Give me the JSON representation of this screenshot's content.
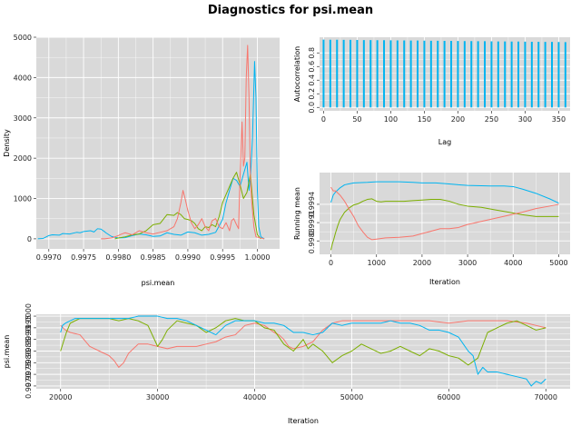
{
  "figure": {
    "title": "Diagnostics for psi.mean"
  },
  "colors": {
    "chain1": "#F8766D",
    "chain2": "#7CAE00",
    "chain3": "#00B4F0",
    "panel_bg": "#D9D9D9",
    "grid": "#FFFFFF"
  },
  "chart_data": [
    {
      "id": "density",
      "type": "line",
      "title": "",
      "xlabel": "psi.mean",
      "ylabel": "Density",
      "xlim": [
        0.99682,
        1.00032
      ],
      "ylim": [
        -250,
        5000
      ],
      "xticks": [
        0.997,
        0.9975,
        0.998,
        0.9985,
        0.999,
        0.9995,
        1.0
      ],
      "xtick_labels": [
        "0.9970",
        "0.9975",
        "0.9980",
        "0.9985",
        "0.9990",
        "0.9995",
        "1.0000"
      ],
      "yticks": [
        0,
        1000,
        2000,
        3000,
        4000,
        5000
      ],
      "ytick_labels": [
        "0",
        "1000",
        "2000",
        "3000",
        "4000",
        "5000"
      ],
      "grid": true,
      "series": [
        {
          "color": "#00B4F0",
          "x": [
            0.99684,
            0.99692,
            0.997,
            0.99705,
            0.99715,
            0.9972,
            0.9973,
            0.9974,
            0.99745,
            0.9975,
            0.9976,
            0.99765,
            0.9977,
            0.99775,
            0.9978,
            0.99782,
            0.9979,
            0.998,
            0.9981,
            0.9982,
            0.9983,
            0.9984,
            0.9985,
            0.9986,
            0.9987,
            0.9988,
            0.9989,
            0.999,
            0.9991,
            0.9992,
            0.9993,
            0.9994,
            0.9995,
            0.99955,
            0.9996,
            0.99965,
            0.9997,
            0.99975,
            0.9998,
            0.99985,
            0.99988,
            0.9999,
            0.99993,
            0.99996,
            0.99998,
            1.0,
            1.00002,
            1.00005,
            1.0001
          ],
          "y": [
            0,
            10,
            80,
            100,
            90,
            130,
            120,
            160,
            150,
            180,
            200,
            170,
            250,
            240,
            180,
            150,
            60,
            20,
            30,
            80,
            120,
            100,
            60,
            70,
            150,
            110,
            90,
            170,
            150,
            90,
            110,
            160,
            480,
            900,
            1200,
            1500,
            1450,
            1300,
            1600,
            1900,
            1200,
            1500,
            2500,
            4400,
            3500,
            1200,
            300,
            50,
            0
          ]
        },
        {
          "color": "#7CAE00",
          "x": [
            0.99795,
            0.998,
            0.9981,
            0.9982,
            0.9983,
            0.9984,
            0.9985,
            0.9986,
            0.9987,
            0.9988,
            0.99885,
            0.9989,
            0.99895,
            0.999,
            0.99905,
            0.9991,
            0.99915,
            0.9992,
            0.99925,
            0.9993,
            0.99935,
            0.9994,
            0.99945,
            0.9995,
            0.99955,
            0.9996,
            0.99965,
            0.9997,
            0.99975,
            0.9998,
            0.99985,
            0.9999,
            0.99995,
            1.0,
            1.00005
          ],
          "y": [
            0,
            20,
            50,
            100,
            120,
            200,
            350,
            380,
            600,
            580,
            650,
            600,
            500,
            480,
            450,
            380,
            250,
            200,
            300,
            280,
            350,
            300,
            550,
            900,
            1100,
            1300,
            1500,
            1650,
            1350,
            1000,
            1150,
            1600,
            600,
            100,
            0
          ]
        },
        {
          "color": "#F8766D",
          "x": [
            0.99775,
            0.9978,
            0.9979,
            0.998,
            0.99805,
            0.9981,
            0.9982,
            0.9983,
            0.9984,
            0.9985,
            0.9986,
            0.9987,
            0.9988,
            0.99885,
            0.9989,
            0.99893,
            0.99896,
            0.999,
            0.99905,
            0.9991,
            0.99915,
            0.9992,
            0.99925,
            0.9993,
            0.99935,
            0.9994,
            0.99945,
            0.9995,
            0.99955,
            0.9996,
            0.99963,
            0.99966,
            0.9997,
            0.99973,
            0.99975,
            0.99978,
            0.9998,
            0.99982,
            0.99984,
            0.99986,
            0.99988,
            0.9999,
            0.99992,
            0.99995,
            0.99998,
            1.0001
          ],
          "y": [
            0,
            0,
            20,
            80,
            120,
            150,
            100,
            200,
            150,
            120,
            160,
            200,
            300,
            500,
            900,
            1200,
            1000,
            700,
            400,
            250,
            350,
            500,
            300,
            200,
            450,
            500,
            300,
            250,
            400,
            200,
            450,
            500,
            350,
            250,
            1500,
            2900,
            1800,
            2000,
            4000,
            4800,
            3500,
            1500,
            900,
            300,
            50,
            0
          ]
        }
      ]
    },
    {
      "id": "autocorrelation",
      "type": "bar",
      "title": "",
      "xlabel": "Lag",
      "ylabel": "Autocorrelation",
      "xlim": [
        -6,
        367
      ],
      "ylim": [
        -0.05,
        1.03
      ],
      "xticks": [
        0,
        50,
        100,
        150,
        200,
        250,
        300,
        350
      ],
      "xtick_labels": [
        "0",
        "50",
        "100",
        "150",
        "200",
        "250",
        "300",
        "350"
      ],
      "yticks": [
        0.0,
        0.2,
        0.4,
        0.6,
        0.8
      ],
      "ytick_labels": [
        "0.0",
        "0.2",
        "0.4",
        "0.6",
        "0.8"
      ],
      "grid": true,
      "lags": [
        0,
        10,
        20,
        30,
        40,
        50,
        60,
        70,
        80,
        90,
        100,
        110,
        120,
        130,
        140,
        150,
        160,
        170,
        180,
        190,
        200,
        210,
        220,
        230,
        240,
        250,
        260,
        270,
        280,
        290,
        300,
        310,
        320,
        330,
        340,
        350,
        360
      ],
      "values": [
        0.995,
        0.994,
        0.993,
        0.992,
        0.991,
        0.99,
        0.989,
        0.988,
        0.987,
        0.986,
        0.985,
        0.984,
        0.983,
        0.982,
        0.981,
        0.98,
        0.979,
        0.978,
        0.977,
        0.976,
        0.975,
        0.974,
        0.973,
        0.972,
        0.971,
        0.97,
        0.969,
        0.968,
        0.967,
        0.966,
        0.965,
        0.964,
        0.963,
        0.962,
        0.961,
        0.96,
        0.959
      ]
    },
    {
      "id": "running_mean",
      "type": "line",
      "title": "",
      "xlabel": "Iteration",
      "ylabel": "Running mean",
      "xlim": [
        -250,
        5250
      ],
      "ylim": [
        0.99858,
        0.99992
      ],
      "xticks": [
        0,
        1000,
        2000,
        3000,
        4000,
        5000
      ],
      "xtick_labels": [
        "0",
        "1000",
        "2000",
        "3000",
        "4000",
        "5000"
      ],
      "yticks": [
        0.9988,
        0.9991,
        0.9994
      ],
      "ytick_labels": [
        "0.9988",
        "0.9991",
        "0.9994"
      ],
      "grid": true,
      "series": [
        {
          "color": "#00B4F0",
          "x": [
            0,
            50,
            100,
            200,
            300,
            500,
            800,
            1000,
            1200,
            1500,
            1800,
            2000,
            2300,
            2500,
            2800,
            3000,
            3500,
            3800,
            4000,
            4200,
            4500,
            4800,
            5000
          ],
          "y": [
            0.99943,
            0.99955,
            0.9996,
            0.99967,
            0.99972,
            0.99975,
            0.99976,
            0.99977,
            0.99977,
            0.99977,
            0.99976,
            0.99975,
            0.99975,
            0.99974,
            0.99972,
            0.99971,
            0.9997,
            0.9997,
            0.99969,
            0.99965,
            0.99958,
            0.99949,
            0.99942
          ]
        },
        {
          "color": "#7CAE00",
          "x": [
            0,
            30,
            60,
            100,
            150,
            200,
            300,
            400,
            500,
            600,
            700,
            800,
            900,
            1000,
            1100,
            1200,
            1400,
            1600,
            1800,
            2000,
            2200,
            2400,
            2600,
            2800,
            3000,
            3300,
            3600,
            3900,
            4200,
            4500,
            4800,
            5000
          ],
          "y": [
            0.99865,
            0.99875,
            0.99882,
            0.99893,
            0.99905,
            0.99915,
            0.99927,
            0.99934,
            0.99939,
            0.99941,
            0.99945,
            0.99948,
            0.99949,
            0.99945,
            0.99944,
            0.99945,
            0.99945,
            0.99945,
            0.99946,
            0.99947,
            0.99948,
            0.99948,
            0.99945,
            0.9994,
            0.99937,
            0.99935,
            0.99931,
            0.99927,
            0.99923,
            0.9992,
            0.9992,
            0.9992
          ]
        },
        {
          "color": "#F8766D",
          "x": [
            0,
            50,
            100,
            200,
            300,
            400,
            500,
            600,
            700,
            800,
            900,
            1000,
            1200,
            1500,
            1800,
            2000,
            2200,
            2400,
            2600,
            2800,
            3000,
            3300,
            3600,
            3900,
            4200,
            4500,
            4800,
            5000
          ],
          "y": [
            0.99968,
            0.99962,
            0.99962,
            0.99955,
            0.99945,
            0.99932,
            0.9992,
            0.99905,
            0.99895,
            0.99886,
            0.99882,
            0.99883,
            0.99885,
            0.99886,
            0.99888,
            0.99892,
            0.99896,
            0.999,
            0.999,
            0.99902,
            0.99907,
            0.99912,
            0.99917,
            0.99922,
            0.99927,
            0.99933,
            0.99937,
            0.9994
          ]
        }
      ]
    },
    {
      "id": "trace",
      "type": "line",
      "title": "",
      "xlabel": "Iteration",
      "ylabel": "psi.mean",
      "xlim": [
        17500,
        72500
      ],
      "ylim": [
        0.99688,
        1.00008
      ],
      "xticks": [
        20000,
        30000,
        40000,
        50000,
        60000,
        70000
      ],
      "xtick_labels": [
        "20000",
        "30000",
        "40000",
        "50000",
        "60000",
        "70000"
      ],
      "yticks": [
        0.997,
        0.9975,
        0.998,
        0.9985,
        0.999,
        0.9995,
        1.0
      ],
      "ytick_labels": [
        "0.9970",
        "0.9975",
        "0.9980",
        "0.9985",
        "0.9990",
        "0.9995",
        "1.0000"
      ],
      "grid": true,
      "series": [
        {
          "color": "#F8766D",
          "x": [
            20000,
            20500,
            21000,
            22000,
            23000,
            24000,
            25000,
            25500,
            26000,
            26500,
            27000,
            27500,
            28000,
            29000,
            30000,
            31000,
            32000,
            33000,
            34000,
            35000,
            36000,
            37000,
            38000,
            38500,
            39000,
            40000,
            41000,
            42000,
            42500,
            43000,
            43500,
            44000,
            45000,
            46000,
            47000,
            48000,
            49000,
            50000,
            52000,
            54000,
            56000,
            58000,
            60000,
            62000,
            64000,
            66000,
            68000,
            69000,
            70000
          ],
          "y": [
            0.9996,
            0.9994,
            0.9993,
            0.9992,
            0.9987,
            0.9985,
            0.9983,
            0.9981,
            0.9978,
            0.998,
            0.9984,
            0.9986,
            0.9988,
            0.9988,
            0.9987,
            0.9986,
            0.9987,
            0.9987,
            0.9987,
            0.9988,
            0.9989,
            0.9991,
            0.9992,
            0.9994,
            0.9996,
            0.9997,
            0.9996,
            0.9993,
            0.9992,
            0.999,
            0.9987,
            0.9986,
            0.9987,
            0.9989,
            0.9994,
            0.9997,
            0.9998,
            0.9998,
            0.9998,
            0.9998,
            0.9998,
            0.9998,
            0.9997,
            0.9998,
            0.9998,
            0.9998,
            0.9997,
            0.9996,
            0.9995
          ]
        },
        {
          "color": "#7CAE00",
          "x": [
            20000,
            20300,
            20600,
            21000,
            22000,
            23000,
            24000,
            25000,
            26000,
            27000,
            28000,
            29000,
            30000,
            30500,
            31000,
            32000,
            33000,
            34000,
            35000,
            36000,
            37000,
            38000,
            39000,
            40000,
            41000,
            42000,
            43000,
            44000,
            45000,
            45500,
            46000,
            47000,
            48000,
            49000,
            50000,
            51000,
            52000,
            53000,
            54000,
            55000,
            56000,
            57000,
            58000,
            59000,
            60000,
            61000,
            62000,
            63000,
            64000,
            65000,
            66000,
            67000,
            68000,
            69000,
            70000
          ],
          "y": [
            0.9985,
            0.9989,
            0.9993,
            0.9997,
            0.9999,
            0.9999,
            0.9999,
            0.9999,
            0.9998,
            0.9999,
            0.9998,
            0.9996,
            0.9987,
            0.999,
            0.9994,
            0.9998,
            0.9997,
            0.9996,
            0.9993,
            0.9995,
            0.9998,
            0.9999,
            0.9998,
            0.9998,
            0.9995,
            0.9994,
            0.9988,
            0.9985,
            0.999,
            0.9986,
            0.9988,
            0.9985,
            0.998,
            0.9983,
            0.9985,
            0.9988,
            0.9986,
            0.9984,
            0.9985,
            0.9987,
            0.9985,
            0.9983,
            0.9986,
            0.9985,
            0.9983,
            0.9982,
            0.9979,
            0.9982,
            0.9993,
            0.9995,
            0.9997,
            0.9998,
            0.9996,
            0.9994,
            0.9995
          ]
        },
        {
          "color": "#00B4F0",
          "x": [
            20000,
            20200,
            20500,
            21000,
            21500,
            22000,
            23000,
            24000,
            25000,
            26000,
            27000,
            28000,
            29000,
            30000,
            31000,
            32000,
            33000,
            34000,
            35000,
            36000,
            37000,
            38000,
            39000,
            40000,
            41000,
            42000,
            43000,
            44000,
            45000,
            46000,
            47000,
            48000,
            49000,
            50000,
            51000,
            52000,
            53000,
            54000,
            55000,
            56000,
            57000,
            58000,
            59000,
            60000,
            61000,
            61500,
            62000,
            62500,
            63000,
            63500,
            64000,
            65000,
            66000,
            67000,
            68000,
            68500,
            69000,
            69500,
            70000
          ],
          "y": [
            0.9993,
            0.9996,
            0.9997,
            0.9998,
            0.9999,
            0.9999,
            0.9999,
            0.9999,
            0.9999,
            0.9999,
            0.9999,
            1.0,
            1.0,
            1.0,
            0.9999,
            0.9999,
            0.9998,
            0.9996,
            0.9994,
            0.9992,
            0.9996,
            0.9998,
            0.9998,
            0.9998,
            0.9997,
            0.9997,
            0.9996,
            0.9993,
            0.9993,
            0.9992,
            0.9993,
            0.9997,
            0.9996,
            0.9997,
            0.9997,
            0.9997,
            0.9997,
            0.9998,
            0.9997,
            0.9997,
            0.9996,
            0.9994,
            0.9994,
            0.9993,
            0.9991,
            0.9988,
            0.9985,
            0.9983,
            0.9975,
            0.9978,
            0.9976,
            0.9976,
            0.9975,
            0.9974,
            0.9973,
            0.997,
            0.9972,
            0.9971,
            0.9973
          ]
        }
      ]
    }
  ]
}
